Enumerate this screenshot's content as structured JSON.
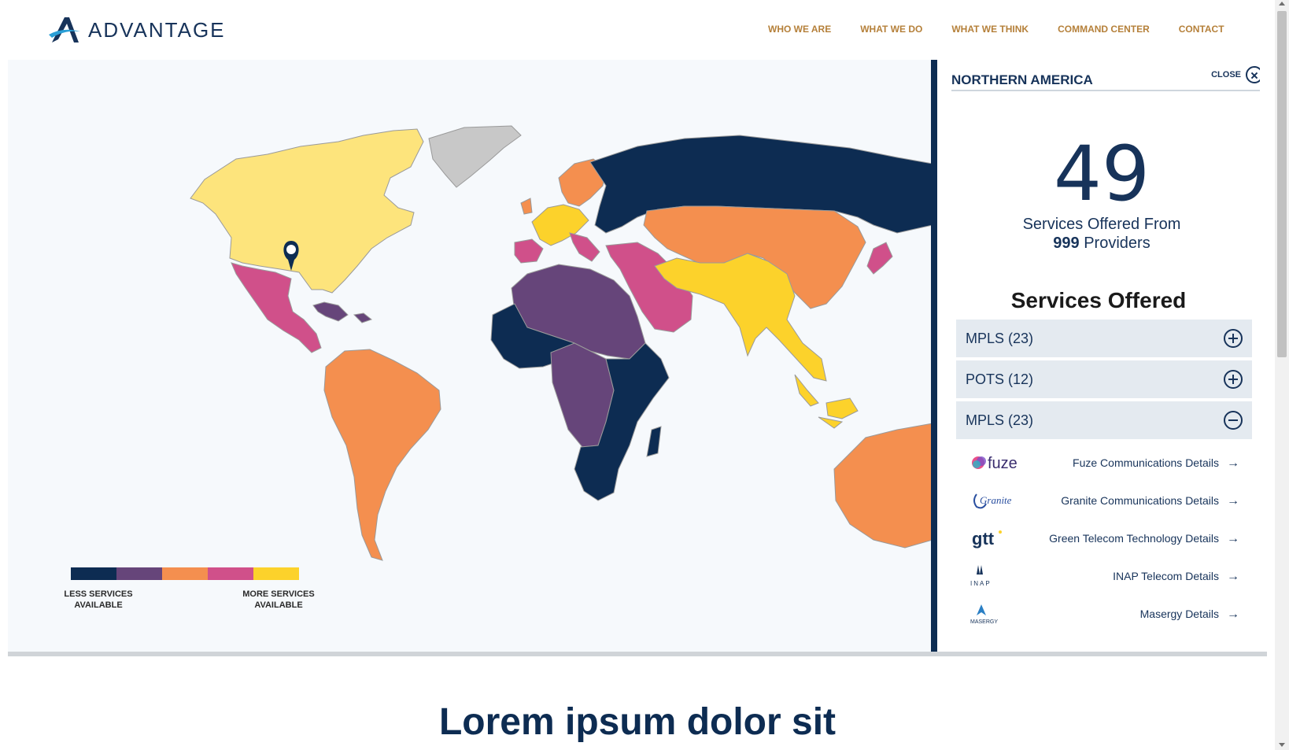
{
  "brand": {
    "name": "ADVANTAGE",
    "logo_icon": "advantage-logo-icon"
  },
  "nav": [
    {
      "label": "WHO WE ARE"
    },
    {
      "label": "WHAT WE DO"
    },
    {
      "label": "WHAT WE THINK"
    },
    {
      "label": "COMMAND CENTER"
    },
    {
      "label": "CONTACT"
    }
  ],
  "colors": {
    "level1": "#0d2c52",
    "level2": "#66457a",
    "level3": "#f48f4f",
    "level4": "#d0508a",
    "level5": "#fcd22b",
    "selected": "#fde47c",
    "nodata": "#c8c8c8",
    "nav": "#b5803a",
    "primary": "#17335a"
  },
  "legend": {
    "less_label": "LESS SERVICES AVAILABLE",
    "more_label": "MORE SERVICES AVAILABLE"
  },
  "panel": {
    "region": "NORTHERN AMERICA",
    "close_label": "CLOSE",
    "count": "49",
    "offered_from": "Services Offered From",
    "providers_count": "999",
    "providers_word": "Providers",
    "services_title": "Services Offered",
    "accordions": [
      {
        "label": "MPLS (23)",
        "state": "collapsed"
      },
      {
        "label": "POTS (12)",
        "state": "collapsed"
      },
      {
        "label": "MPLS (23)",
        "state": "expanded"
      }
    ],
    "providers": [
      {
        "logo": "fuze",
        "link": "Fuze Communications Details"
      },
      {
        "logo": "Granite",
        "link": "Granite Communications Details"
      },
      {
        "logo": "gtt",
        "link": "Green Telecom Technology Details"
      },
      {
        "logo": "INAP",
        "link": "INAP Telecom Details"
      },
      {
        "logo": "MASERGY",
        "link": "Masergy Details"
      }
    ]
  },
  "section": {
    "heading": "Lorem ipsum dolor sit"
  }
}
